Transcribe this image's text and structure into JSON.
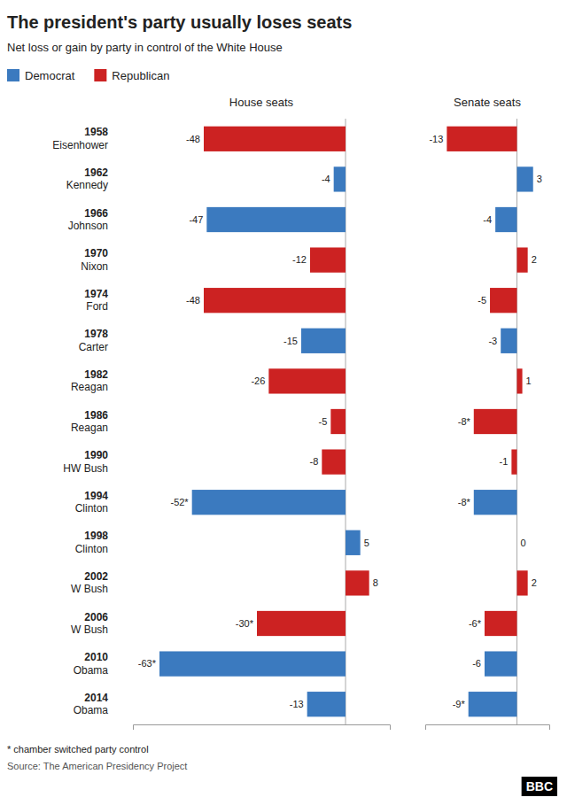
{
  "chart_data": [
    {
      "type": "bar",
      "orientation": "horizontal",
      "title": "The president's party usually loses seats",
      "subtitle": "Net loss or gain by party in control of the White House",
      "xlabel": "House seats",
      "annotations": [
        "* chamber switched party control",
        "Source: The American Presidency Project",
        "BBC"
      ],
      "categories": [
        "1958\nEisenhower",
        "1962\nKennedy",
        "1966\nJohnson",
        "1970\nNixon",
        "1974\nFord",
        "1978\nCarter",
        "1982\nReagan",
        "1986\nReagan",
        "1990\nHW Bush",
        "1994\nClinton",
        "1998\nClinton",
        "2002\nW Bush",
        "2006\nW Bush",
        "2010\nObama",
        "2014\nObama"
      ],
      "series": [
        {
          "name": "Democrat",
          "color": "#3b7abf",
          "values": [
            null,
            -4,
            -47,
            null,
            null,
            -15,
            null,
            null,
            null,
            -52,
            5,
            null,
            null,
            -63,
            -13
          ],
          "value_labels": [
            null,
            "-4",
            "-47",
            null,
            null,
            "-15",
            null,
            null,
            null,
            "-52*",
            "5",
            null,
            null,
            "-63*",
            "-13"
          ]
        },
        {
          "name": "Republican",
          "color": "#cc2222",
          "values": [
            -48,
            null,
            null,
            -12,
            -48,
            null,
            -26,
            -5,
            -8,
            null,
            null,
            8,
            -30,
            null,
            null
          ],
          "value_labels": [
            "-48",
            null,
            null,
            "-12",
            "-48",
            null,
            "-26",
            "-5",
            "-8",
            null,
            null,
            "8",
            "-30*",
            null,
            null
          ]
        }
      ],
      "xlim": [
        -72,
        15
      ],
      "stacked": true,
      "data_labels": true,
      "tick_labels": "y",
      "legend": "upper left",
      "grid": false
    },
    {
      "type": "bar",
      "orientation": "horizontal",
      "xlabel": "Senate seats",
      "series": [
        {
          "color": "#3b7abf",
          "values": [
            null,
            3,
            -4,
            null,
            null,
            -3,
            null,
            null,
            null,
            -8,
            0,
            null,
            null,
            -6,
            -9
          ],
          "value_labels": [
            null,
            "3",
            "-4",
            null,
            null,
            "-3",
            null,
            null,
            null,
            "-8*",
            "0",
            null,
            null,
            "-6",
            "-9*"
          ]
        },
        {
          "color": "#cc2222",
          "values": [
            -13,
            null,
            null,
            2,
            -5,
            null,
            1,
            -8,
            -1,
            null,
            null,
            2,
            -6,
            null,
            null
          ],
          "value_labels": [
            "-13",
            null,
            null,
            "2",
            "-5",
            null,
            "1",
            "-8*",
            "-1",
            null,
            null,
            "2",
            "-6*",
            null,
            null
          ]
        }
      ],
      "xlim": [
        -17,
        6
      ],
      "stacked": true,
      "data_labels": true,
      "tick_labels": false,
      "grid": false
    }
  ]
}
